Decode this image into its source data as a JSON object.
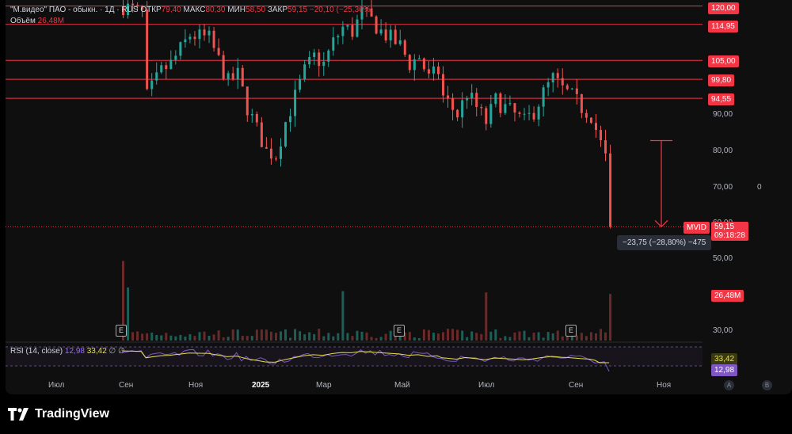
{
  "header": {
    "symbol": "\"М.видео\" ПАО - обыкн. · 1Д · RUS",
    "open_label": "ОТКР",
    "open": "79,40",
    "high_label": "МАКС",
    "high": "80,30",
    "low_label": "МИН",
    "low": "58,50",
    "close_label": "ЗАКР",
    "close": "59,15",
    "change": "−20,10 (−25,36%)",
    "volume_label": "Объём",
    "volume": "26,48M"
  },
  "rsi": {
    "label": "RSI (14, close)",
    "value": "12,98",
    "ma_value": "33,42",
    "extra": "∅  ∅"
  },
  "price_axis": {
    "ticks": [
      "90,00",
      "80,00",
      "70,00",
      "60,00",
      "50,00",
      "30,00"
    ],
    "level_labels": [
      "120,00",
      "114,95",
      "105,00",
      "99,80",
      "94,55"
    ],
    "symbol_tag": "MVID",
    "last_price": "59,15",
    "countdown": "09:18:28",
    "volume_tag": "26,48M",
    "rsi_ma_tag": "33,42",
    "rsi_tag": "12,98",
    "zero_label": "0"
  },
  "time_axis": [
    "Июл",
    "Сен",
    "Ноя",
    "2025",
    "Мар",
    "Май",
    "Июл",
    "Сен",
    "Ноя"
  ],
  "events": [
    "E",
    "E",
    "E"
  ],
  "measure": {
    "text": "−23,75 (−28,80%) −475"
  },
  "corner_buttons": [
    "A",
    "B"
  ],
  "brand": "TradingView",
  "colors": {
    "level": "#f23645",
    "up": "#26a69a",
    "down": "#ef5350",
    "rsi": "#7e57c2",
    "rsi_ma": "#e6e04b",
    "bg": "#0f0f0f"
  },
  "chart_data": {
    "type": "candlestick",
    "title": "\"М.видео\" ПАО - обыкн.",
    "interval": "1Д",
    "ylim": [
      25,
      125
    ],
    "horizontal_levels": [
      120.0,
      114.95,
      105.0,
      99.8,
      94.55
    ],
    "last_price": 59.15,
    "measure": {
      "from": 82.9,
      "to": 59.15,
      "change": -23.75,
      "change_pct": -28.8,
      "bars": -475
    },
    "x_labels": [
      "Июл",
      "Сен",
      "Ноя",
      "2025",
      "Мар",
      "Май",
      "Июл",
      "Сен",
      "Ноя"
    ],
    "close_path": [
      [
        0,
        120
      ],
      [
        4,
        118
      ],
      [
        5,
        95
      ],
      [
        8,
        102
      ],
      [
        10,
        104
      ],
      [
        14,
        112
      ],
      [
        18,
        111
      ],
      [
        20,
        105
      ],
      [
        22,
        99
      ],
      [
        24,
        101
      ],
      [
        26,
        92
      ],
      [
        28,
        86
      ],
      [
        30,
        80
      ],
      [
        32,
        79
      ],
      [
        34,
        88
      ],
      [
        36,
        95
      ],
      [
        38,
        102
      ],
      [
        40,
        106
      ],
      [
        42,
        104
      ],
      [
        44,
        110
      ],
      [
        46,
        114
      ],
      [
        48,
        113
      ],
      [
        50,
        118
      ],
      [
        52,
        116
      ],
      [
        54,
        113
      ],
      [
        56,
        111
      ],
      [
        58,
        109
      ],
      [
        60,
        104
      ],
      [
        62,
        106
      ],
      [
        64,
        100
      ],
      [
        66,
        102
      ],
      [
        67,
        95
      ],
      [
        70,
        90
      ],
      [
        72,
        96
      ],
      [
        74,
        92
      ],
      [
        76,
        88
      ],
      [
        78,
        94
      ],
      [
        80,
        92
      ],
      [
        82,
        90
      ],
      [
        84,
        88
      ],
      [
        86,
        91
      ],
      [
        88,
        96
      ],
      [
        90,
        100
      ],
      [
        92,
        97
      ],
      [
        94,
        95
      ],
      [
        96,
        92
      ],
      [
        98,
        90
      ],
      [
        99,
        86
      ],
      [
        100,
        82
      ],
      [
        101,
        78
      ],
      [
        102,
        59.15
      ]
    ],
    "rsi": {
      "value": 12.98,
      "ma": 33.42,
      "upper": 70,
      "lower": 30
    }
  }
}
